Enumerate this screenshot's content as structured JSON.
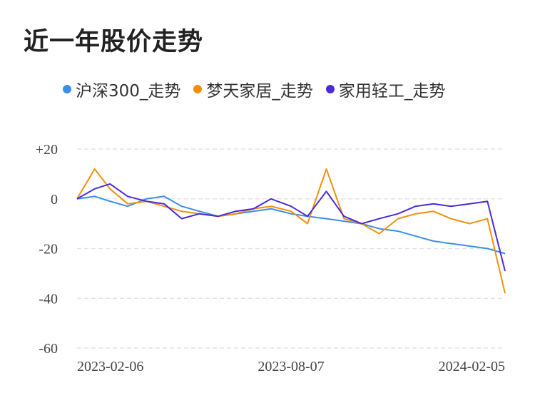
{
  "title": "近一年股价走势",
  "chart_data": {
    "type": "line",
    "title": "近一年股价走势",
    "xlabel": "",
    "ylabel": "",
    "ylim": [
      -60,
      20
    ],
    "yticks": [
      "+20",
      "0",
      "-20",
      "-40",
      "-60"
    ],
    "ytick_values": [
      20,
      0,
      -20,
      -40,
      -60
    ],
    "x_start": "2023-02-06",
    "x_end": "2024-02-05",
    "xticks": [
      "2023-02-06",
      "2023-08-07",
      "2024-02-05"
    ],
    "grid": true,
    "legend_position": "top",
    "x": [
      "2023-02-06",
      "2023-02-21",
      "2023-03-06",
      "2023-03-21",
      "2023-04-06",
      "2023-04-21",
      "2023-05-06",
      "2023-05-21",
      "2023-06-06",
      "2023-06-21",
      "2023-07-06",
      "2023-07-21",
      "2023-08-07",
      "2023-08-21",
      "2023-09-06",
      "2023-09-21",
      "2023-10-06",
      "2023-10-21",
      "2023-11-06",
      "2023-11-21",
      "2023-12-06",
      "2023-12-21",
      "2024-01-06",
      "2024-01-21",
      "2024-02-05"
    ],
    "series": [
      {
        "name": "沪深300_走势",
        "color": "#3b8fe8",
        "values": [
          0,
          1,
          -1,
          -3,
          0,
          1,
          -3,
          -5,
          -7,
          -6,
          -5,
          -4,
          -6,
          -7,
          -8,
          -9,
          -10,
          -12,
          -13,
          -15,
          -17,
          -18,
          -19,
          -20,
          -22
        ]
      },
      {
        "name": "梦天家居_走势",
        "color": "#f0900e",
        "values": [
          0,
          12,
          4,
          -2,
          -1,
          -3,
          -5,
          -6,
          -7,
          -6,
          -4,
          -3,
          -5,
          -10,
          12,
          -8,
          -10,
          -14,
          -8,
          -6,
          -5,
          -8,
          -10,
          -8,
          -38
        ]
      },
      {
        "name": "家用轻工_走势",
        "color": "#4a2bd8",
        "values": [
          0,
          4,
          6,
          1,
          -1,
          -2,
          -8,
          -6,
          -7,
          -5,
          -4,
          0,
          -3,
          -7,
          3,
          -7,
          -10,
          -8,
          -6,
          -3,
          -2,
          -3,
          -2,
          -1,
          -29
        ]
      }
    ]
  }
}
